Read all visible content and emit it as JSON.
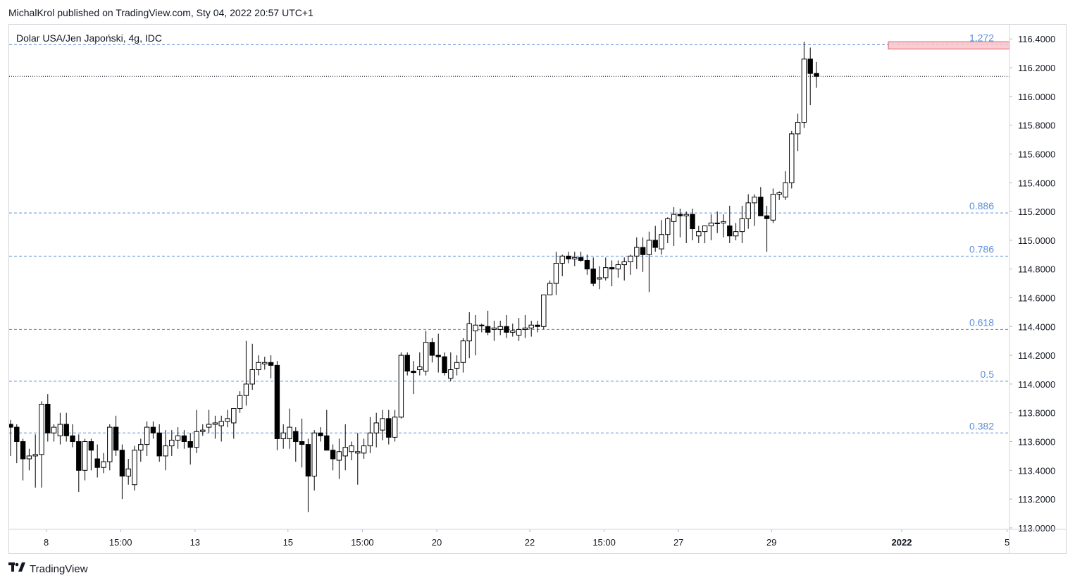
{
  "header": {
    "published": "MichalKrol published on TradingView.com, Sty 04, 2022 20:57 UTC+1"
  },
  "footer": {
    "logo_icon": "tradingview-logo-icon",
    "brand": "TradingView"
  },
  "chart_data": {
    "type": "candlestick",
    "title": "Dolar USA/Jen Japoński, 4g, IDC",
    "ylim": [
      112.98,
      116.46
    ],
    "y_ticks": [
      "116.4000",
      "116.2000",
      "116.0000",
      "115.8000",
      "115.6000",
      "115.4000",
      "115.2000",
      "115.0000",
      "114.8000",
      "114.6000",
      "114.4000",
      "114.2000",
      "114.0000",
      "113.8000",
      "113.6000",
      "113.4000",
      "113.2000",
      "113.0000"
    ],
    "x_tick_labels": [
      {
        "label": "8",
        "bar": 2
      },
      {
        "label": "15:00",
        "bar": 14
      },
      {
        "label": "13",
        "bar": 26
      },
      {
        "label": "15",
        "bar": 41
      },
      {
        "label": "15:00",
        "bar": 53
      },
      {
        "label": "20",
        "bar": 65
      },
      {
        "label": "22",
        "bar": 80
      },
      {
        "label": "15:00",
        "bar": 92
      },
      {
        "label": "27",
        "bar": 104
      },
      {
        "label": "29",
        "bar": 119
      },
      {
        "label": "2022",
        "bar": 140,
        "bold": true
      },
      {
        "label": "5",
        "bar": 157
      }
    ],
    "fib_levels": [
      {
        "label": "1.272",
        "value": 116.36
      },
      {
        "label": "0.886",
        "value": 115.19
      },
      {
        "label": "0.786",
        "value": 114.89
      },
      {
        "label": "0.618",
        "value": 114.38
      },
      {
        "label": "0.5",
        "value": 114.02
      },
      {
        "label": "0.382",
        "value": 113.66
      }
    ],
    "last_price": 116.14,
    "target_zone": {
      "from": 116.33,
      "to": 116.38
    },
    "colors": {
      "fib": "#5b8fd8",
      "up_fill": "#ffffff",
      "down_fill": "#000000",
      "candle_line": "#000000",
      "zone_fill": "#f8c4c9",
      "zone_border": "#e0707c",
      "grid": "#d1d4dc"
    },
    "candles": [
      [
        113.72,
        113.75,
        113.5,
        113.7
      ],
      [
        113.7,
        113.72,
        113.45,
        113.6
      ],
      [
        113.6,
        113.62,
        113.33,
        113.48
      ],
      [
        113.48,
        113.55,
        113.4,
        113.5
      ],
      [
        113.5,
        113.65,
        113.28,
        113.51
      ],
      [
        113.51,
        113.88,
        113.28,
        113.86
      ],
      [
        113.86,
        113.93,
        113.6,
        113.66
      ],
      [
        113.66,
        113.72,
        113.6,
        113.7
      ],
      [
        113.64,
        113.8,
        113.58,
        113.72
      ],
      [
        113.72,
        113.8,
        113.6,
        113.64
      ],
      [
        113.64,
        113.72,
        113.56,
        113.6
      ],
      [
        113.6,
        113.65,
        113.25,
        113.4
      ],
      [
        113.4,
        113.62,
        113.33,
        113.6
      ],
      [
        113.6,
        113.62,
        113.4,
        113.54
      ],
      [
        113.48,
        113.58,
        113.35,
        113.42
      ],
      [
        113.42,
        113.52,
        113.38,
        113.46
      ],
      [
        113.46,
        113.72,
        113.4,
        113.7
      ],
      [
        113.7,
        113.78,
        113.5,
        113.54
      ],
      [
        113.54,
        113.58,
        113.2,
        113.36
      ],
      [
        113.36,
        113.48,
        113.3,
        113.41
      ],
      [
        113.3,
        113.57,
        113.26,
        113.54
      ],
      [
        113.54,
        113.62,
        113.46,
        113.58
      ],
      [
        113.58,
        113.74,
        113.5,
        113.7
      ],
      [
        113.7,
        113.74,
        113.62,
        113.66
      ],
      [
        113.66,
        113.72,
        113.46,
        113.5
      ],
      [
        113.5,
        113.68,
        113.4,
        113.57
      ],
      [
        113.57,
        113.68,
        113.5,
        113.61
      ],
      [
        113.61,
        113.7,
        113.55,
        113.64
      ],
      [
        113.64,
        113.68,
        113.55,
        113.6
      ],
      [
        113.6,
        113.66,
        113.44,
        113.56
      ],
      [
        113.56,
        113.82,
        113.52,
        113.67
      ],
      [
        113.67,
        113.72,
        113.64,
        113.68
      ],
      [
        113.7,
        113.82,
        113.66,
        113.72
      ],
      [
        113.72,
        113.78,
        113.62,
        113.73
      ],
      [
        113.71,
        113.78,
        113.6,
        113.74
      ],
      [
        113.74,
        113.82,
        113.7,
        113.76
      ],
      [
        113.73,
        113.8,
        113.62,
        113.83
      ],
      [
        113.83,
        113.95,
        113.8,
        113.92
      ],
      [
        113.92,
        114.3,
        113.85,
        114.0
      ],
      [
        114.0,
        114.28,
        113.96,
        114.1
      ],
      [
        114.1,
        114.2,
        114.06,
        114.15
      ],
      [
        114.14,
        114.19,
        114.1,
        114.15
      ],
      [
        114.15,
        114.2,
        114.04,
        114.13
      ],
      [
        114.13,
        114.16,
        113.54,
        113.62
      ],
      [
        113.62,
        113.72,
        113.55,
        113.66
      ],
      [
        113.62,
        113.83,
        113.55,
        113.7
      ],
      [
        113.67,
        113.7,
        113.46,
        113.6
      ],
      [
        113.6,
        113.76,
        113.42,
        113.58
      ],
      [
        113.58,
        113.62,
        113.11,
        113.36
      ],
      [
        113.36,
        113.68,
        113.26,
        113.66
      ],
      [
        113.66,
        113.7,
        113.6,
        113.64
      ],
      [
        113.64,
        113.82,
        113.56,
        113.54
      ],
      [
        113.54,
        113.58,
        113.4,
        113.48
      ],
      [
        113.47,
        113.62,
        113.34,
        113.53
      ],
      [
        113.5,
        113.72,
        113.4,
        113.56
      ],
      [
        113.53,
        113.6,
        113.47,
        113.57
      ],
      [
        113.52,
        113.66,
        113.3,
        113.53
      ],
      [
        113.52,
        113.62,
        113.48,
        113.57
      ],
      [
        113.57,
        113.77,
        113.52,
        113.66
      ],
      [
        113.66,
        113.8,
        113.56,
        113.73
      ],
      [
        113.68,
        113.82,
        113.61,
        113.76
      ],
      [
        113.76,
        113.82,
        113.58,
        113.63
      ],
      [
        113.63,
        113.82,
        113.6,
        113.77
      ],
      [
        113.77,
        114.22,
        113.76,
        114.2
      ],
      [
        114.2,
        114.22,
        114.06,
        114.09
      ],
      [
        114.09,
        114.16,
        113.93,
        114.08
      ],
      [
        114.1,
        114.22,
        114.06,
        114.12
      ],
      [
        114.09,
        114.37,
        114.06,
        114.29
      ],
      [
        114.29,
        114.32,
        114.15,
        114.2
      ],
      [
        114.2,
        114.35,
        114.08,
        114.19
      ],
      [
        114.19,
        114.22,
        114.06,
        114.08
      ],
      [
        114.04,
        114.22,
        114.02,
        114.1
      ],
      [
        114.11,
        114.2,
        114.06,
        114.15
      ],
      [
        114.15,
        114.32,
        114.08,
        114.3
      ],
      [
        114.3,
        114.5,
        114.18,
        114.42
      ],
      [
        114.37,
        114.48,
        114.2,
        114.41
      ],
      [
        114.41,
        114.42,
        114.36,
        114.41
      ],
      [
        114.4,
        114.51,
        114.34,
        114.36
      ],
      [
        114.38,
        114.44,
        114.3,
        114.39
      ],
      [
        114.38,
        114.44,
        114.34,
        114.4
      ],
      [
        114.4,
        114.48,
        114.32,
        114.36
      ],
      [
        114.36,
        114.42,
        114.33,
        114.37
      ],
      [
        114.34,
        114.46,
        114.3,
        114.38
      ],
      [
        114.38,
        114.48,
        114.32,
        114.39
      ],
      [
        114.39,
        114.44,
        114.33,
        114.41
      ],
      [
        114.41,
        114.44,
        114.36,
        114.4
      ],
      [
        114.4,
        114.62,
        114.38,
        114.62
      ],
      [
        114.62,
        114.72,
        114.62,
        114.7
      ],
      [
        114.7,
        114.92,
        114.62,
        114.84
      ],
      [
        114.84,
        114.9,
        114.75,
        114.89
      ],
      [
        114.89,
        114.92,
        114.84,
        114.87
      ],
      [
        114.87,
        114.92,
        114.82,
        114.88
      ],
      [
        114.88,
        114.92,
        114.85,
        114.86
      ],
      [
        114.86,
        114.9,
        114.76,
        114.8
      ],
      [
        114.8,
        114.88,
        114.68,
        114.7
      ],
      [
        114.73,
        114.82,
        114.66,
        114.74
      ],
      [
        114.74,
        114.88,
        114.72,
        114.81
      ],
      [
        114.81,
        114.86,
        114.68,
        114.8
      ],
      [
        114.8,
        114.86,
        114.74,
        114.83
      ],
      [
        114.83,
        114.88,
        114.72,
        114.85
      ],
      [
        114.85,
        114.9,
        114.76,
        114.89
      ],
      [
        114.89,
        115.02,
        114.8,
        114.95
      ],
      [
        114.95,
        115.02,
        114.78,
        114.9
      ],
      [
        114.9,
        115.06,
        114.64,
        115.0
      ],
      [
        115.0,
        115.1,
        114.92,
        114.95
      ],
      [
        114.94,
        115.14,
        114.9,
        115.04
      ],
      [
        115.04,
        115.16,
        114.98,
        115.15
      ],
      [
        115.13,
        115.23,
        114.96,
        115.18
      ],
      [
        115.18,
        115.22,
        115.02,
        115.17
      ],
      [
        115.17,
        115.2,
        114.98,
        115.18
      ],
      [
        115.18,
        115.22,
        115.0,
        115.08
      ],
      [
        115.03,
        115.1,
        114.98,
        115.06
      ],
      [
        115.06,
        115.1,
        114.98,
        115.1
      ],
      [
        115.1,
        115.18,
        115.0,
        115.12
      ],
      [
        115.12,
        115.2,
        115.05,
        115.12
      ],
      [
        115.12,
        115.18,
        115.02,
        115.13
      ],
      [
        115.1,
        115.24,
        114.98,
        115.03
      ],
      [
        115.03,
        115.12,
        115.0,
        115.06
      ],
      [
        115.06,
        115.24,
        114.98,
        115.15
      ],
      [
        115.15,
        115.32,
        115.08,
        115.26
      ],
      [
        115.26,
        115.32,
        115.1,
        115.3
      ],
      [
        115.3,
        115.37,
        115.18,
        115.17
      ],
      [
        115.17,
        115.24,
        114.92,
        115.15
      ],
      [
        115.14,
        115.36,
        115.12,
        115.32
      ],
      [
        115.32,
        115.34,
        115.28,
        115.33
      ],
      [
        115.3,
        115.48,
        115.28,
        115.4
      ],
      [
        115.4,
        115.76,
        115.36,
        115.74
      ],
      [
        115.74,
        115.88,
        115.62,
        115.82
      ],
      [
        115.82,
        116.38,
        115.78,
        116.26
      ],
      [
        116.26,
        116.34,
        115.94,
        116.16
      ],
      [
        116.16,
        116.24,
        116.06,
        116.14
      ]
    ]
  }
}
